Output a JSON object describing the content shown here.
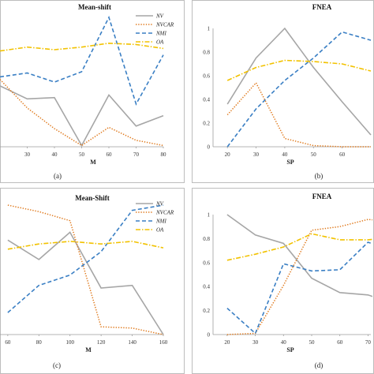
{
  "colors": {
    "NV": "#a6a6a6",
    "NVCAR": "#e07b1f",
    "NMI": "#3a7fc4",
    "OA": "#f2c200"
  },
  "chart_data": [
    {
      "id": "a",
      "type": "line",
      "title": "Mean-shift",
      "caption": "(a)",
      "xlabel": "M",
      "x": [
        20,
        30,
        40,
        50,
        60,
        70,
        80
      ],
      "x_ticks": [
        30,
        40,
        50,
        60,
        70,
        80
      ],
      "y_ticks": [],
      "ylim": [
        0,
        1
      ],
      "legend_position": "top-right",
      "series": [
        {
          "name": "NV",
          "key": "NV",
          "values": [
            0.47,
            0.37,
            0.38,
            0.01,
            0.4,
            0.16,
            0.24
          ]
        },
        {
          "name": "NVCAR",
          "key": "NVCAR",
          "values": [
            0.52,
            0.3,
            0.14,
            0.01,
            0.15,
            0.05,
            0.01
          ]
        },
        {
          "name": "NMI",
          "key": "NMI",
          "values": [
            0.54,
            0.57,
            0.5,
            0.58,
            1.0,
            0.33,
            0.71
          ]
        },
        {
          "name": "OA",
          "key": "OA",
          "values": [
            0.74,
            0.77,
            0.75,
            0.77,
            0.8,
            0.79,
            0.76
          ]
        }
      ]
    },
    {
      "id": "b",
      "type": "line",
      "title": "FNEA",
      "caption": "(b)",
      "xlabel": "SP",
      "x": [
        20,
        30,
        40,
        50,
        60,
        70
      ],
      "x_ticks": [
        20,
        30,
        40,
        50,
        60
      ],
      "y_ticks": [
        0,
        0.2,
        0.4,
        0.6,
        0.8,
        1
      ],
      "y_tick_labels": [
        "0",
        "0.2",
        "0.4",
        "0.6",
        "0.8",
        "1"
      ],
      "ylim": [
        0,
        1
      ],
      "series": [
        {
          "name": "NV",
          "key": "NV",
          "values": [
            0.36,
            0.75,
            1.0,
            0.67,
            0.38,
            0.1
          ]
        },
        {
          "name": "NVCAR",
          "key": "NVCAR",
          "values": [
            0.27,
            0.54,
            0.07,
            0.01,
            0.0,
            0.0
          ]
        },
        {
          "name": "NMI",
          "key": "NMI",
          "values": [
            0.0,
            0.32,
            0.56,
            0.75,
            0.97,
            0.9
          ]
        },
        {
          "name": "OA",
          "key": "OA",
          "values": [
            0.56,
            0.67,
            0.73,
            0.72,
            0.7,
            0.64
          ]
        }
      ]
    },
    {
      "id": "c",
      "type": "line",
      "title": "Mean-Shift",
      "caption": "(c)",
      "xlabel": "M",
      "x": [
        60,
        80,
        100,
        120,
        140,
        160
      ],
      "x_ticks": [
        60,
        80,
        100,
        120,
        140,
        160
      ],
      "y_ticks": [],
      "ylim": [
        0,
        1
      ],
      "legend_position": "top-right",
      "series": [
        {
          "name": "NV",
          "key": "NV",
          "values": [
            0.73,
            0.58,
            0.79,
            0.36,
            0.38,
            0.0
          ]
        },
        {
          "name": "NVCAR",
          "key": "NVCAR",
          "values": [
            1.0,
            0.95,
            0.88,
            0.06,
            0.05,
            0.0
          ]
        },
        {
          "name": "NMI",
          "key": "NMI",
          "values": [
            0.17,
            0.38,
            0.46,
            0.64,
            0.96,
            1.0
          ]
        },
        {
          "name": "OA",
          "key": "OA",
          "values": [
            0.66,
            0.7,
            0.72,
            0.7,
            0.72,
            0.67
          ]
        }
      ]
    },
    {
      "id": "d",
      "type": "line",
      "title": "FNEA",
      "caption": "(d)",
      "xlabel": "SP",
      "x": [
        20,
        30,
        40,
        50,
        60,
        70,
        75
      ],
      "x_ticks": [
        20,
        30,
        40,
        50,
        60,
        70
      ],
      "y_ticks": [
        0,
        0.2,
        0.4,
        0.6,
        0.8,
        1
      ],
      "y_tick_labels": [
        "0",
        "0.2",
        "0.4",
        "0.6",
        "0.8",
        "1"
      ],
      "ylim": [
        0,
        1
      ],
      "series": [
        {
          "name": "NV",
          "key": "NV",
          "values": [
            1.0,
            0.83,
            0.76,
            0.47,
            0.35,
            0.33,
            0.29
          ]
        },
        {
          "name": "NVCAR",
          "key": "NVCAR",
          "values": [
            0.0,
            0.01,
            0.41,
            0.87,
            0.9,
            0.96,
            0.95
          ]
        },
        {
          "name": "NMI",
          "key": "NMI",
          "values": [
            0.22,
            0.01,
            0.59,
            0.53,
            0.54,
            0.77,
            0.73
          ]
        },
        {
          "name": "OA",
          "key": "OA",
          "values": [
            0.62,
            0.67,
            0.73,
            0.84,
            0.79,
            0.79,
            0.8
          ]
        }
      ]
    }
  ]
}
